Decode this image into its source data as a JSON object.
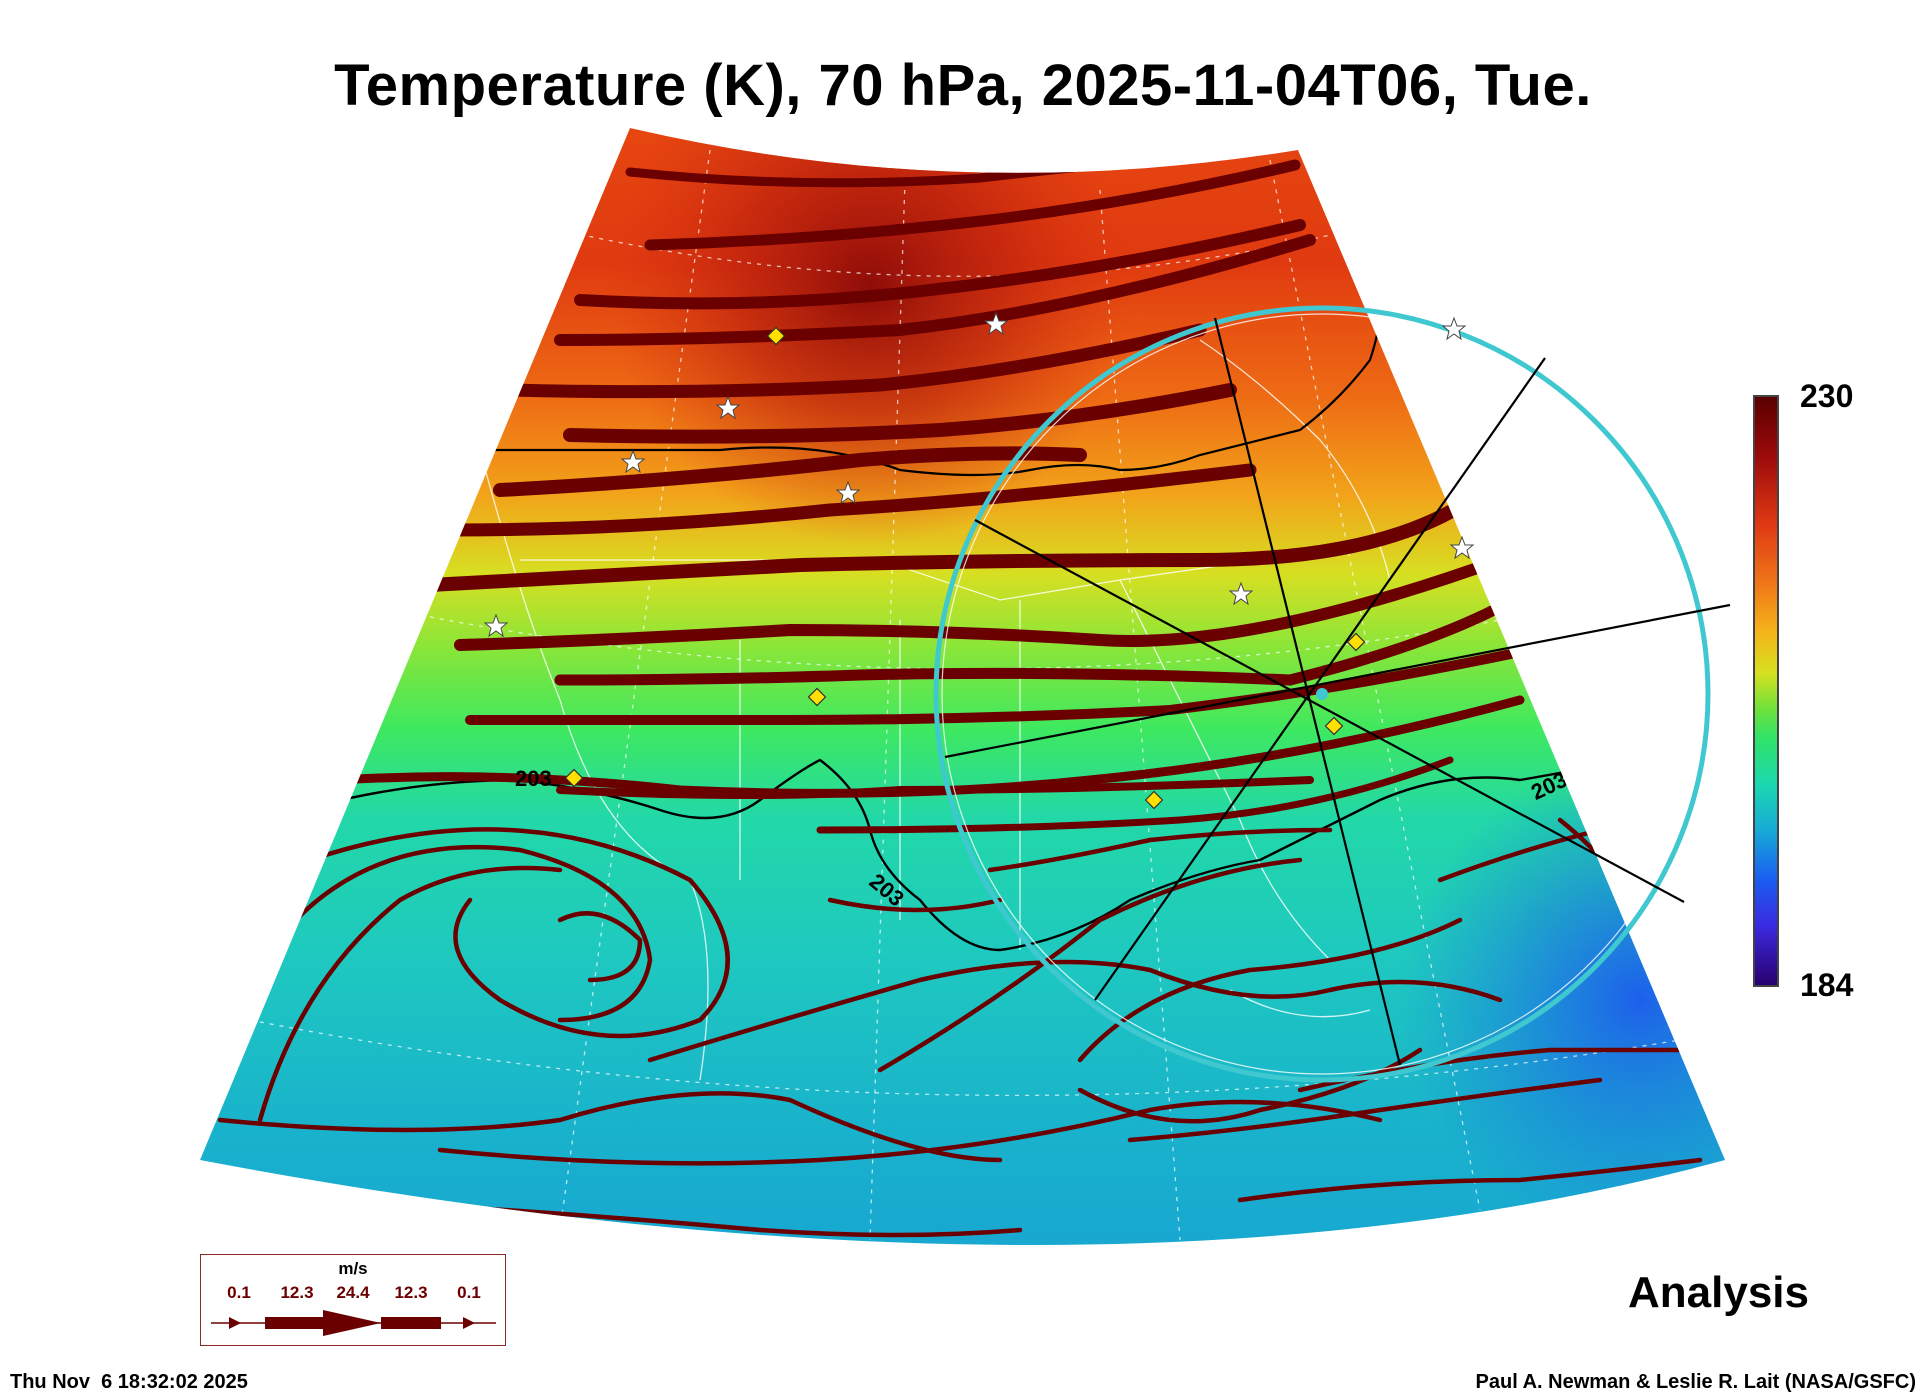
{
  "title": "Temperature (K), 70 hPa, 2025-11-04T06, Tue.",
  "colorbar": {
    "max_label": "230",
    "min_label": "184"
  },
  "contour_labels": [
    "203",
    "203",
    "203"
  ],
  "panel_label": "Analysis",
  "timestamp": "Thu Nov  6 18:32:02 2025",
  "credit": "Paul A. Newman & Leslie R. Lait (NASA/GSFC)",
  "wind_legend": {
    "unit": "m/s",
    "ticks": [
      "0.1",
      "12.3",
      "24.4",
      "12.3",
      "0.1"
    ]
  },
  "colors": {
    "streamline": "#6b0000",
    "contour": "#000000",
    "range_ring": "#3fc8d0",
    "station_marker": "#ffe000"
  }
}
